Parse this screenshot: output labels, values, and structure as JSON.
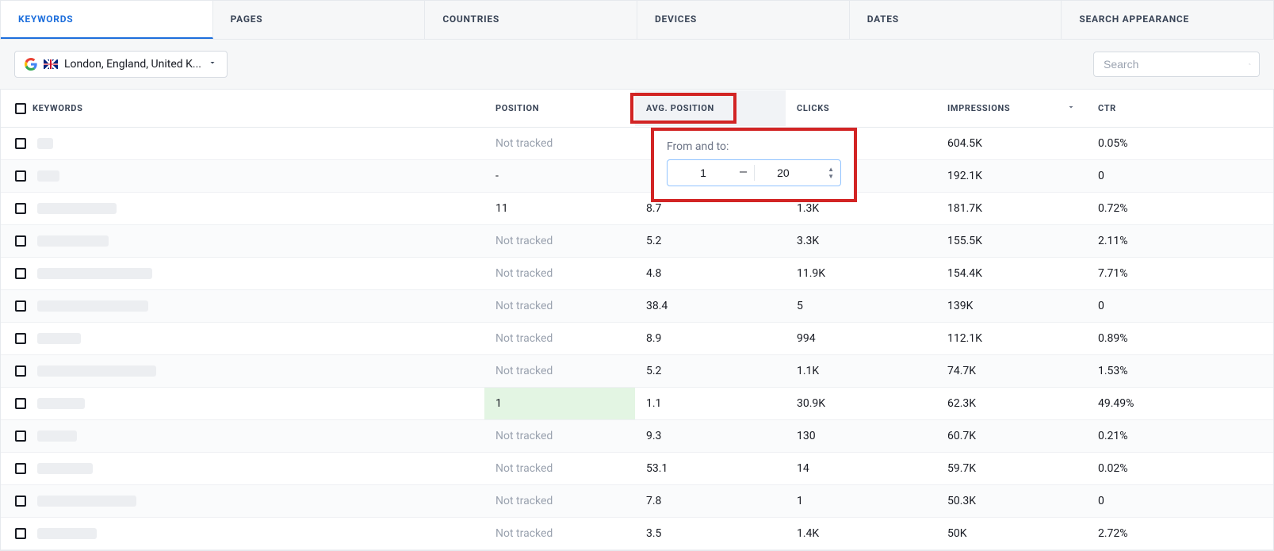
{
  "tabs": [
    {
      "key": "keywords",
      "label": "KEYWORDS",
      "active": true
    },
    {
      "key": "pages",
      "label": "PAGES",
      "active": false
    },
    {
      "key": "countries",
      "label": "COUNTRIES",
      "active": false
    },
    {
      "key": "devices",
      "label": "DEVICES",
      "active": false
    },
    {
      "key": "dates",
      "label": "DATES",
      "active": false
    },
    {
      "key": "search_appearance",
      "label": "SEARCH APPEARANCE",
      "active": false
    }
  ],
  "location": {
    "text": "London, England, United K...",
    "engine": "google",
    "country": "GB"
  },
  "search": {
    "placeholder": "Search"
  },
  "columns": {
    "keywords": "KEYWORDS",
    "position": "POSITION",
    "avg_position": "AVG. POSITION",
    "clicks": "CLICKS",
    "impressions": "IMPRESSIONS",
    "ctr": "CTR"
  },
  "filter": {
    "label": "From and to:",
    "from": "1",
    "to": "20"
  },
  "not_tracked_label": "Not tracked",
  "rows": [
    {
      "kw_w": 20,
      "position": null,
      "avg": "",
      "clicks": "",
      "impressions": "604.5K",
      "ctr": "0.05%"
    },
    {
      "kw_w": 28,
      "position": "-",
      "avg": "",
      "clicks": "",
      "impressions": "192.1K",
      "ctr": "0"
    },
    {
      "kw_w": 100,
      "position": "11",
      "avg": "8.7",
      "clicks": "1.3K",
      "impressions": "181.7K",
      "ctr": "0.72%"
    },
    {
      "kw_w": 90,
      "position": null,
      "avg": "5.2",
      "clicks": "3.3K",
      "impressions": "155.5K",
      "ctr": "2.11%"
    },
    {
      "kw_w": 145,
      "position": null,
      "avg": "4.8",
      "clicks": "11.9K",
      "impressions": "154.4K",
      "ctr": "7.71%"
    },
    {
      "kw_w": 140,
      "position": null,
      "avg": "38.4",
      "clicks": "5",
      "impressions": "139K",
      "ctr": "0"
    },
    {
      "kw_w": 55,
      "position": null,
      "avg": "8.9",
      "clicks": "994",
      "impressions": "112.1K",
      "ctr": "0.89%"
    },
    {
      "kw_w": 150,
      "position": null,
      "avg": "5.2",
      "clicks": "1.1K",
      "impressions": "74.7K",
      "ctr": "1.53%"
    },
    {
      "kw_w": 60,
      "position": "1",
      "pos_good": true,
      "avg": "1.1",
      "clicks": "30.9K",
      "impressions": "62.3K",
      "ctr": "49.49%"
    },
    {
      "kw_w": 50,
      "position": null,
      "avg": "9.3",
      "clicks": "130",
      "impressions": "60.7K",
      "ctr": "0.21%"
    },
    {
      "kw_w": 70,
      "position": null,
      "avg": "53.1",
      "clicks": "14",
      "impressions": "59.7K",
      "ctr": "0.02%"
    },
    {
      "kw_w": 125,
      "position": null,
      "avg": "7.8",
      "clicks": "1",
      "impressions": "50.3K",
      "ctr": "0"
    },
    {
      "kw_w": 75,
      "position": null,
      "avg": "3.5",
      "clicks": "1.4K",
      "impressions": "50K",
      "ctr": "2.72%"
    }
  ],
  "colors": {
    "accent": "#1e6fdc",
    "highlight": "#d22424",
    "muted": "#9aa2af",
    "row_alt": "#fafbfc",
    "pos_good_bg": "#e3f5e3"
  }
}
